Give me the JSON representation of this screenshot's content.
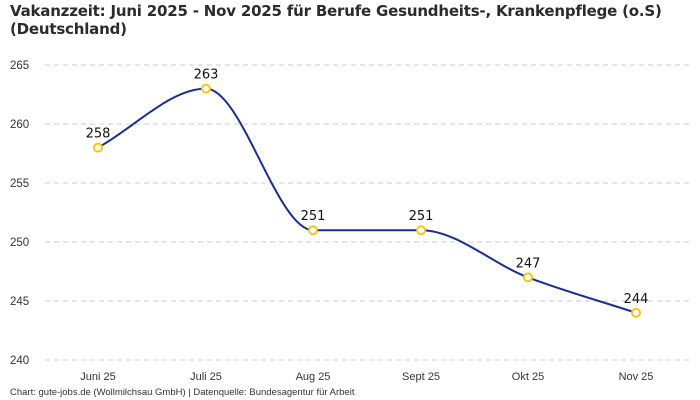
{
  "title": "Vakanzzeit: Juni 2025 - Nov 2025 für Berufe Gesundheits-, Krankenpflege (o.S) (Deutschland)",
  "footer": "Chart: gute-jobs.de (Wollmilchsau GmbH) | Datenquelle: Bundesagentur für Arbeit",
  "colors": {
    "line": "#1a2f8f",
    "marker": "#f5c518",
    "grid": "#cccccc"
  },
  "chart_data": {
    "type": "line",
    "title": "Vakanzzeit: Juni 2025 - Nov 2025 für Berufe Gesundheits-, Krankenpflege (o.S) (Deutschland)",
    "xlabel": "",
    "ylabel": "",
    "categories": [
      "Juni 25",
      "Juli 25",
      "Aug 25",
      "Sept 25",
      "Okt 25",
      "Nov 25"
    ],
    "series": [
      {
        "name": "Vakanzzeit",
        "values": [
          258,
          263,
          251,
          251,
          247,
          244
        ]
      }
    ],
    "data_labels": [
      "258",
      "263",
      "251",
      "251",
      "247",
      "244"
    ],
    "yticks": [
      240,
      245,
      250,
      255,
      260,
      265
    ],
    "ylim": [
      240,
      265
    ],
    "grid": true,
    "legend": "none"
  }
}
